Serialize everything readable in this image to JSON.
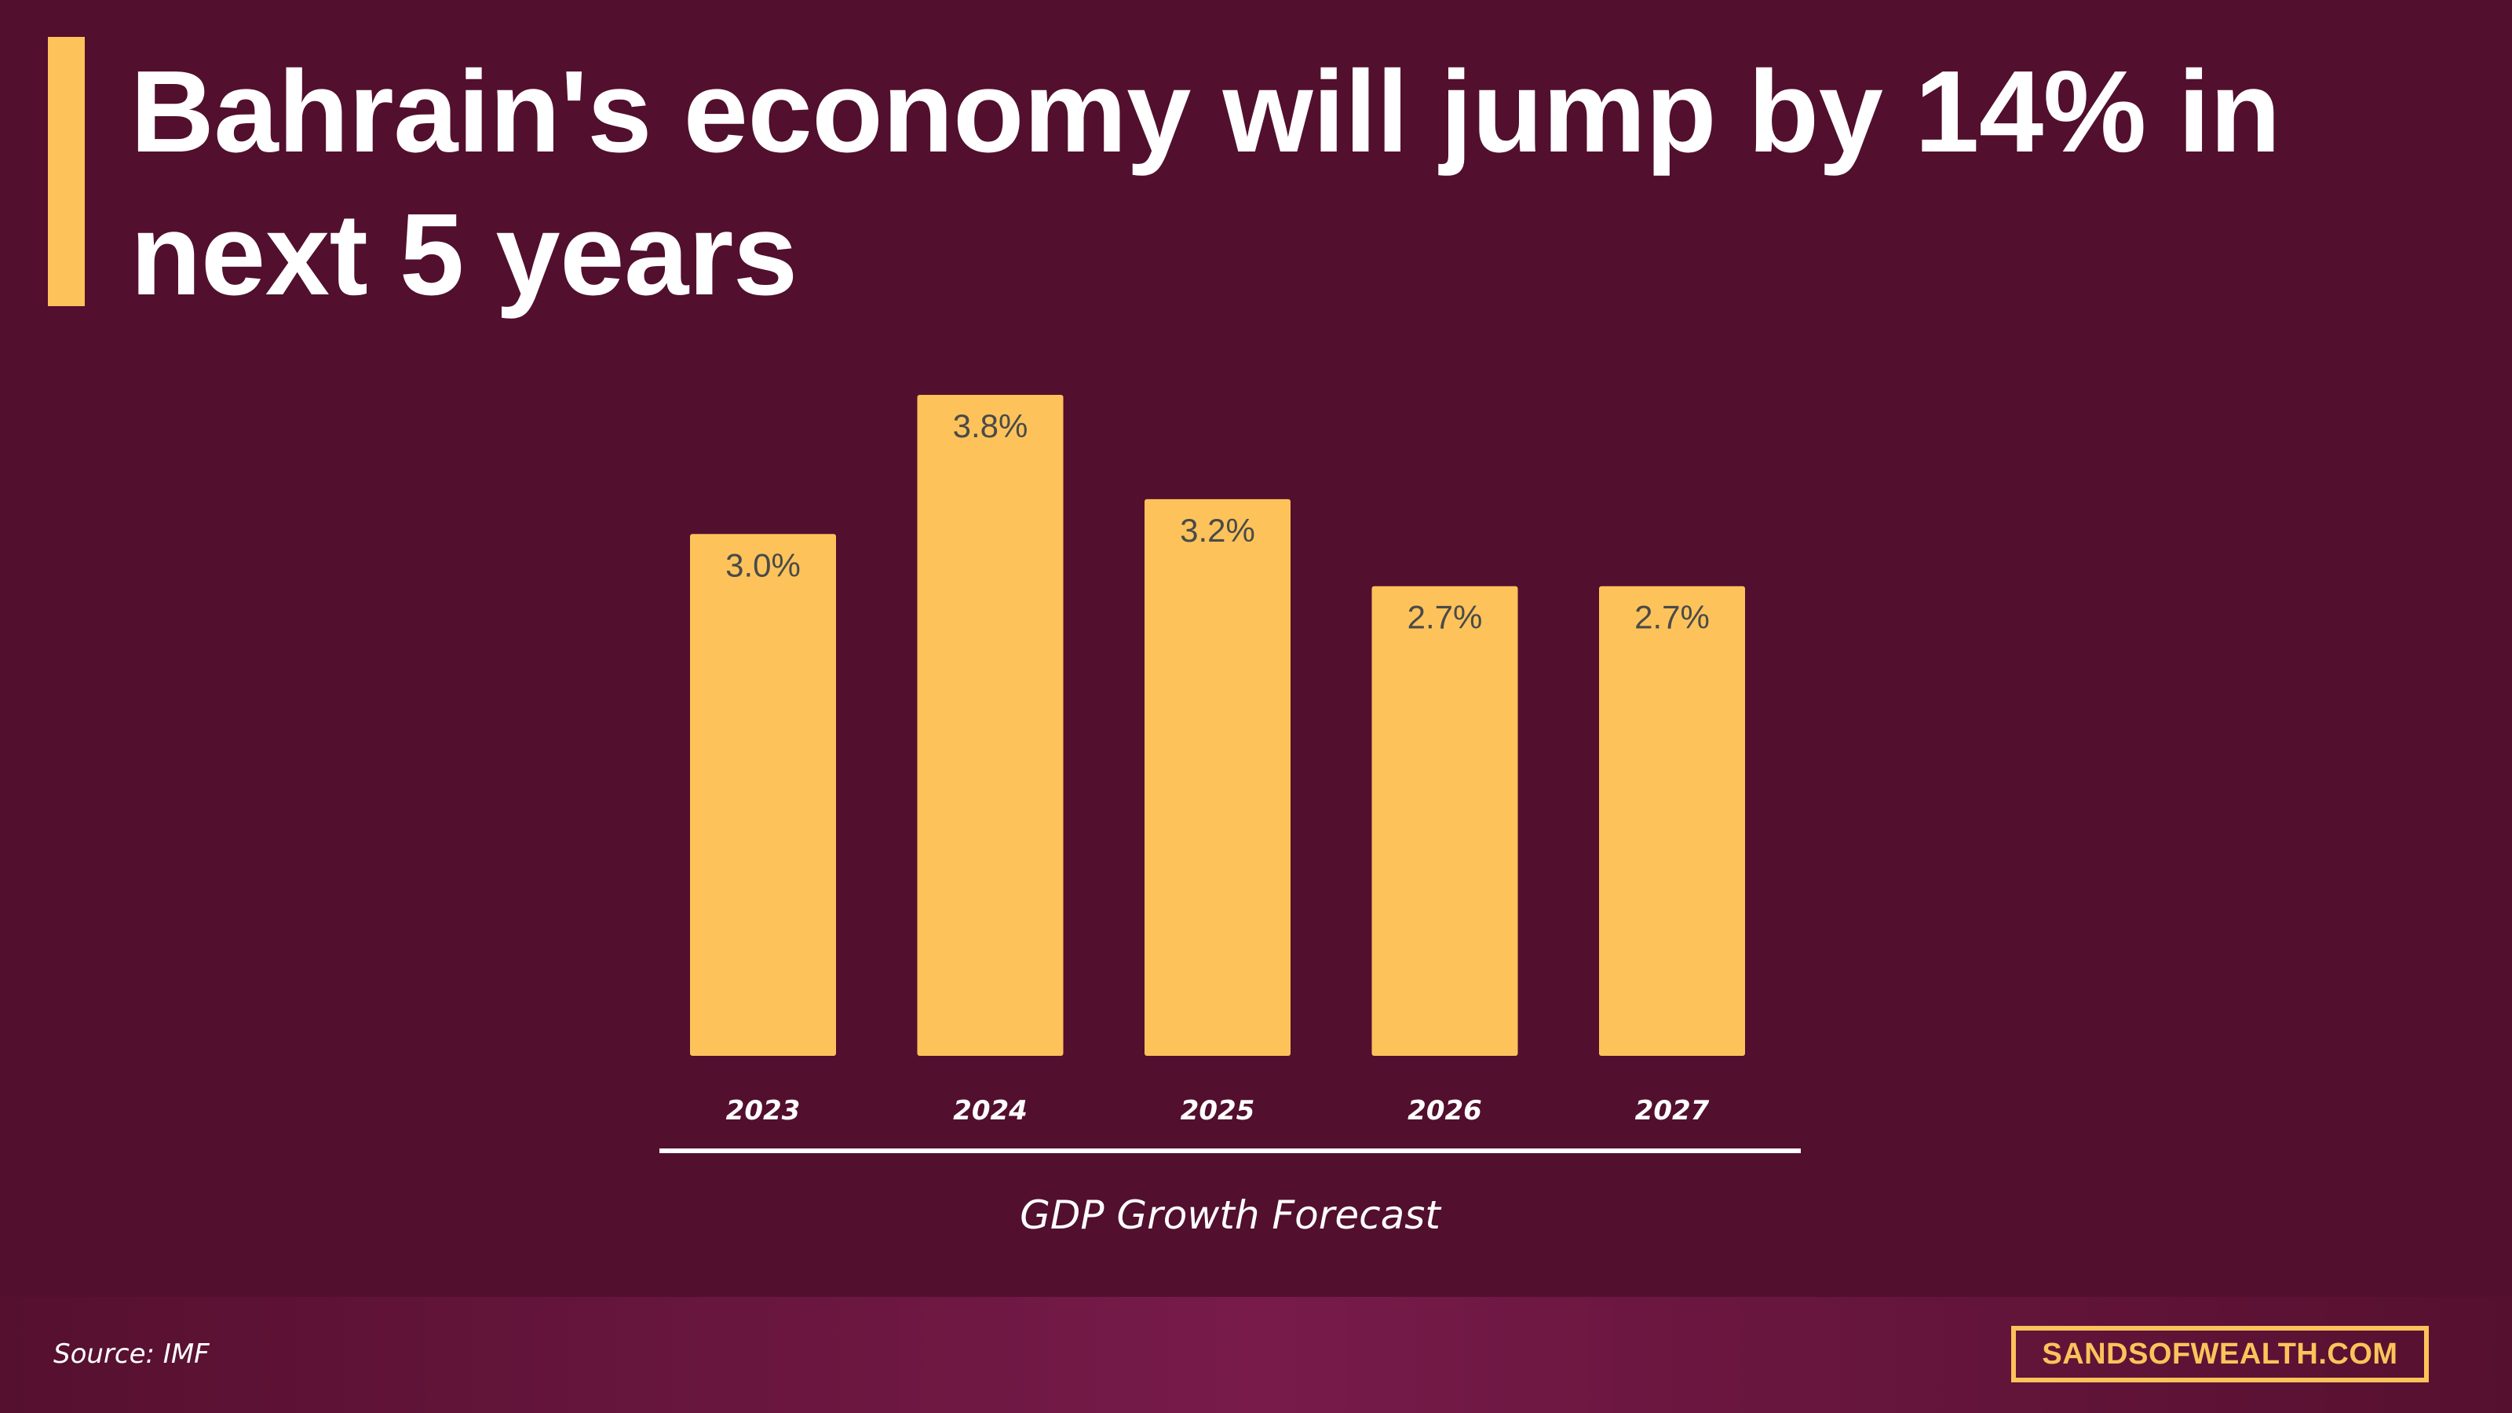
{
  "title": "Bahrain's economy will jump by 14% in next 5 years",
  "footer": {
    "source": "Source: IMF",
    "brand": "SANDSOFWEALTH.COM"
  },
  "colors": {
    "background": "#520f2e",
    "accent": "#fdc35a",
    "text": "#ffffff",
    "data_label": "#4a4a4a"
  },
  "chart_data": {
    "type": "bar",
    "categories": [
      "2023",
      "2024",
      "2025",
      "2026",
      "2027"
    ],
    "values": [
      3.0,
      3.8,
      3.2,
      2.7,
      2.7
    ],
    "data_labels": [
      "3.0%",
      "3.8%",
      "3.2%",
      "2.7%",
      "2.7%"
    ],
    "xlabel": "GDP Growth Forecast",
    "ylabel": "",
    "ylim": [
      0,
      3.8
    ],
    "grid": false,
    "legend": "none",
    "bar_color": "#fdc35a"
  }
}
